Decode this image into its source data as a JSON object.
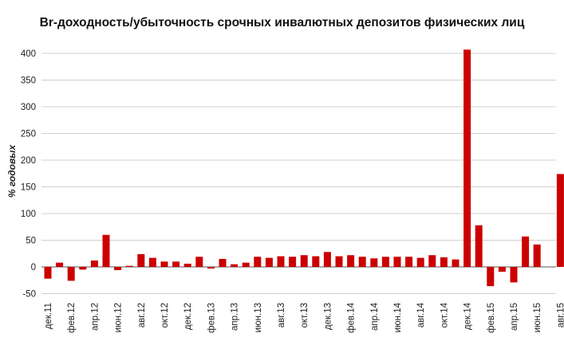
{
  "chart_data": {
    "type": "bar",
    "title": "Br-доходность/убыточность срочных инвалютных депозитов физических лиц",
    "ylabel": "% годовых",
    "xlabel": "",
    "ylim": [
      -50,
      400
    ],
    "yticks": [
      -50,
      0,
      50,
      100,
      150,
      200,
      250,
      300,
      350,
      400
    ],
    "grid": true,
    "color": "#cc0000",
    "categories": [
      "дек.11",
      "янв.12",
      "фев.12",
      "мар.12",
      "апр.12",
      "май.12",
      "июн.12",
      "июл.12",
      "авг.12",
      "сен.12",
      "окт.12",
      "ноя.12",
      "дек.12",
      "янв.13",
      "фев.13",
      "мар.13",
      "апр.13",
      "май.13",
      "июн.13",
      "июл.13",
      "авг.13",
      "сен.13",
      "окт.13",
      "ноя.13",
      "дек.13",
      "янв.14",
      "фев.14",
      "мар.14",
      "апр.14",
      "май.14",
      "июн.14",
      "июл.14",
      "авг.14",
      "сен.14",
      "окт.14",
      "ноя.14",
      "дек.14",
      "янв.15",
      "фев.15",
      "мар.15",
      "апр.15",
      "май.15",
      "июн.15",
      "июл.15",
      "авг.15"
    ],
    "tick_labels": [
      "дек.11",
      "",
      "фев.12",
      "",
      "апр.12",
      "",
      "июн.12",
      "",
      "авг.12",
      "",
      "окт.12",
      "",
      "дек.12",
      "",
      "фев.13",
      "",
      "апр.13",
      "",
      "июн.13",
      "",
      "авг.13",
      "",
      "окт.13",
      "",
      "дек.13",
      "",
      "фев.14",
      "",
      "апр.14",
      "",
      "июн.14",
      "",
      "авг.14",
      "",
      "окт.14",
      "",
      "дек.14",
      "",
      "фев.15",
      "",
      "апр.15",
      "",
      "июн.15",
      "",
      "авг.15"
    ],
    "values": [
      -22,
      8,
      -26,
      -5,
      12,
      60,
      -6,
      2,
      24,
      17,
      10,
      10,
      6,
      19,
      -3,
      15,
      5,
      8,
      19,
      17,
      20,
      19,
      22,
      20,
      28,
      20,
      22,
      19,
      16,
      19,
      19,
      19,
      17,
      22,
      18,
      14,
      407,
      78,
      -36,
      -9,
      -29,
      57,
      42,
      0,
      174
    ]
  }
}
